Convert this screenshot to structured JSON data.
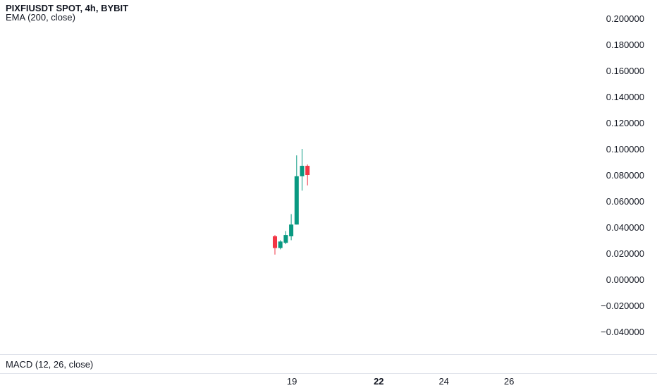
{
  "header": {
    "title": "PIXFIUSDT SPOT, 4h, BYBIT",
    "indicator": "EMA (200, close)"
  },
  "macd": {
    "label": "MACD (12, 26, close)"
  },
  "colors": {
    "up": "#089981",
    "down": "#f23645",
    "text": "#131722",
    "grid": "#e0e3eb"
  },
  "chart_data": {
    "type": "candlestick",
    "symbol": "PIXFIUSDT SPOT",
    "interval": "4h",
    "exchange": "BYBIT",
    "ylim": [
      -0.046,
      0.21
    ],
    "yticks": [
      "0.200000",
      "0.180000",
      "0.160000",
      "0.140000",
      "0.120000",
      "0.100000",
      "0.080000",
      "0.060000",
      "0.040000",
      "0.020000",
      "0.000000",
      "−0.020000",
      "−0.040000"
    ],
    "ytick_values": [
      0.2,
      0.18,
      0.16,
      0.14,
      0.12,
      0.1,
      0.08,
      0.06,
      0.04,
      0.02,
      0.0,
      -0.02,
      -0.04
    ],
    "xticks": [
      {
        "label": "19",
        "bold": false,
        "index": 3
      },
      {
        "label": "22",
        "bold": true,
        "index": 19
      },
      {
        "label": "24",
        "bold": false,
        "index": 31
      },
      {
        "label": "26",
        "bold": false,
        "index": 43
      }
    ],
    "candles": [
      {
        "o": 0.033,
        "h": 0.034,
        "l": 0.019,
        "c": 0.024
      },
      {
        "o": 0.024,
        "h": 0.03,
        "l": 0.023,
        "c": 0.029
      },
      {
        "o": 0.028,
        "h": 0.037,
        "l": 0.027,
        "c": 0.034
      },
      {
        "o": 0.033,
        "h": 0.05,
        "l": 0.03,
        "c": 0.042
      },
      {
        "o": 0.042,
        "h": 0.095,
        "l": 0.042,
        "c": 0.079
      },
      {
        "o": 0.079,
        "h": 0.1,
        "l": 0.068,
        "c": 0.087
      },
      {
        "o": 0.087,
        "h": 0.088,
        "l": 0.072,
        "c": 0.08
      }
    ]
  }
}
